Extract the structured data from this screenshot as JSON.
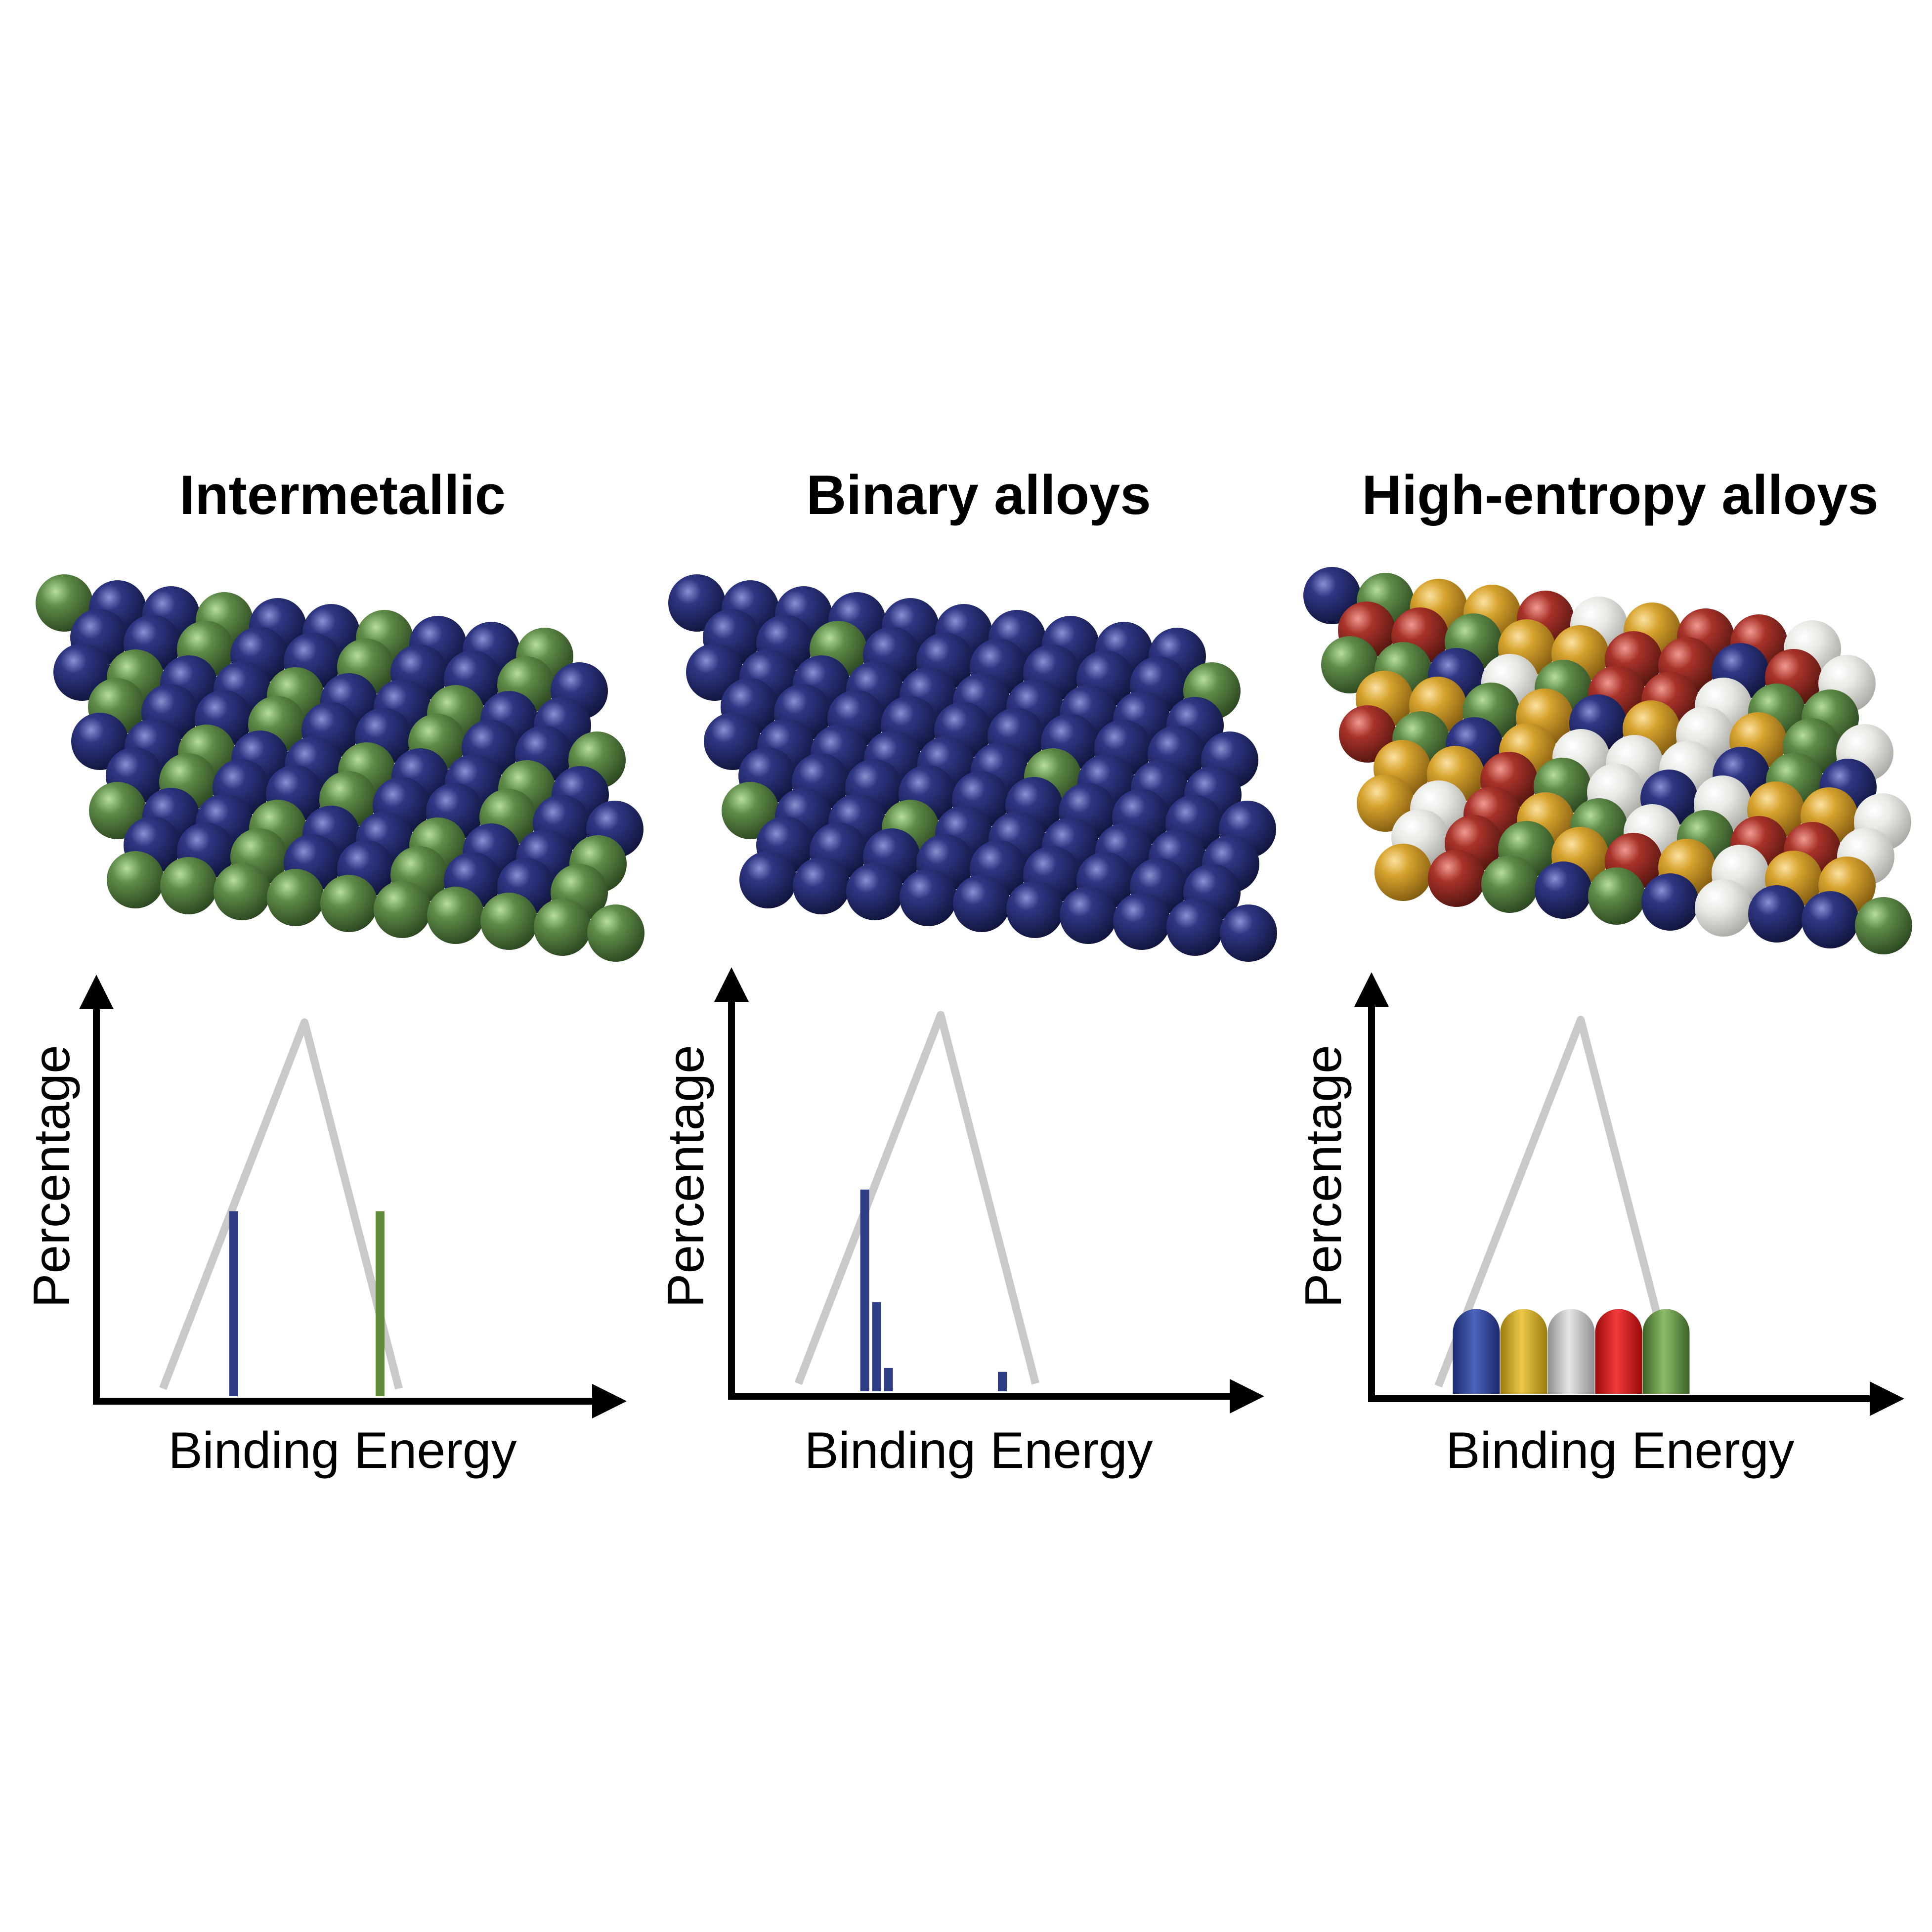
{
  "colors": {
    "blue": "#2b3276",
    "green": "#5f8c48",
    "yellow": "#d7a32e",
    "white": "#dcdcd8",
    "red": "#a8322a",
    "envelope": "#c9c9c9",
    "axis": "#000000"
  },
  "panels": [
    {
      "title": "Intermetallic",
      "ylabel": "Percentage",
      "xlabel": "Binding Energy",
      "lattice": "ordered-blue-green",
      "chart_data": {
        "type": "bar",
        "envelope": "triangle",
        "bars": [
          {
            "x": 0.27,
            "h": 0.48,
            "color": "blue"
          },
          {
            "x": 0.58,
            "h": 0.48,
            "color": "green"
          }
        ]
      }
    },
    {
      "title": "Binary alloys",
      "ylabel": "Percentage",
      "xlabel": "Binding Energy",
      "lattice": "blue-with-few-green",
      "chart_data": {
        "type": "bar",
        "envelope": "triangle",
        "bars": [
          {
            "x": 0.26,
            "h": 0.52,
            "color": "blue"
          },
          {
            "x": 0.285,
            "h": 0.23,
            "color": "blue"
          },
          {
            "x": 0.31,
            "h": 0.06,
            "color": "blue"
          },
          {
            "x": 0.55,
            "h": 0.05,
            "color": "blue"
          }
        ]
      }
    },
    {
      "title": "High-entropy alloys",
      "ylabel": "Percentage",
      "xlabel": "Binding Energy",
      "lattice": "random-five-element",
      "chart_data": {
        "type": "bar",
        "envelope": "triangle",
        "bars": [
          {
            "x": 0.2,
            "h": 0.22,
            "color": "blue"
          },
          {
            "x": 0.3,
            "h": 0.22,
            "color": "yellow"
          },
          {
            "x": 0.4,
            "h": 0.22,
            "color": "white"
          },
          {
            "x": 0.5,
            "h": 0.22,
            "color": "red"
          },
          {
            "x": 0.6,
            "h": 0.22,
            "color": "green"
          }
        ]
      }
    }
  ]
}
